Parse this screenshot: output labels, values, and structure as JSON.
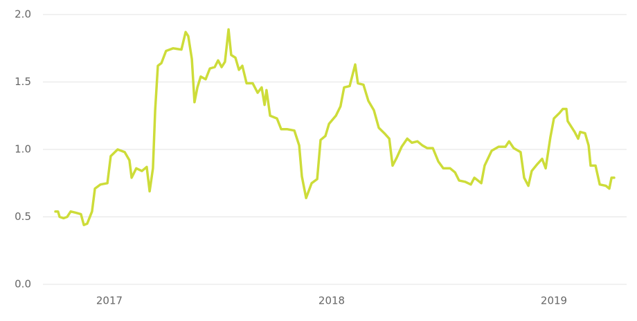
{
  "chart_data": {
    "type": "line",
    "color": "#cddc39",
    "grid": true,
    "xlim": [
      2016.701,
      2019.327
    ],
    "xticks": [
      2017,
      2018,
      2019
    ],
    "ylim": [
      0,
      2
    ],
    "yticks": [
      {
        "value": 0,
        "label": "0.0"
      },
      0.5,
      {
        "value": 1,
        "label": "1.0"
      },
      1.5,
      {
        "value": 2,
        "label": "2.0"
      }
    ],
    "x": [
      2016.757,
      2016.769,
      2016.776,
      2016.794,
      2016.81,
      2016.826,
      2016.85,
      2016.872,
      2016.885,
      2016.9,
      2016.922,
      2016.935,
      2016.96,
      2016.991,
      2017.006,
      2017.037,
      2017.069,
      2017.09,
      2017.1,
      2017.121,
      2017.146,
      2017.168,
      2017.181,
      2017.196,
      2017.206,
      2017.218,
      2017.234,
      2017.255,
      2017.287,
      2017.324,
      2017.343,
      2017.355,
      2017.371,
      2017.383,
      2017.396,
      2017.411,
      2017.433,
      2017.452,
      2017.474,
      2017.489,
      2017.505,
      2017.52,
      2017.536,
      2017.548,
      2017.567,
      2017.583,
      2017.598,
      2017.617,
      2017.645,
      2017.667,
      2017.685,
      2017.698,
      2017.707,
      2017.723,
      2017.754,
      2017.773,
      2017.801,
      2017.832,
      2017.854,
      2017.866,
      2017.885,
      2017.91,
      2017.935,
      2017.95,
      2017.972,
      2017.988,
      2018.019,
      2018.04,
      2018.056,
      2018.081,
      2018.106,
      2018.118,
      2018.143,
      2018.165,
      2018.19,
      2018.212,
      2018.237,
      2018.259,
      2018.274,
      2018.293,
      2018.315,
      2018.34,
      2018.361,
      2018.386,
      2018.408,
      2018.43,
      2018.455,
      2018.48,
      2018.502,
      2018.533,
      2018.555,
      2018.573,
      2018.601,
      2018.626,
      2018.642,
      2018.673,
      2018.688,
      2018.72,
      2018.751,
      2018.782,
      2018.798,
      2018.819,
      2018.85,
      2018.866,
      2018.885,
      2018.9,
      2018.925,
      2018.947,
      2018.963,
      2018.984,
      2019.0,
      2019.025,
      2019.04,
      2019.056,
      2019.062,
      2019.093,
      2019.109,
      2019.118,
      2019.14,
      2019.156,
      2019.165,
      2019.187,
      2019.206,
      2019.234,
      2019.249,
      2019.259,
      2019.271
    ],
    "values": [
      0.54,
      0.54,
      0.5,
      0.49,
      0.5,
      0.54,
      0.53,
      0.52,
      0.44,
      0.45,
      0.54,
      0.71,
      0.74,
      0.75,
      0.95,
      1.0,
      0.98,
      0.92,
      0.79,
      0.86,
      0.84,
      0.87,
      0.69,
      0.86,
      1.29,
      1.62,
      1.64,
      1.73,
      1.75,
      1.74,
      1.87,
      1.84,
      1.67,
      1.35,
      1.46,
      1.54,
      1.52,
      1.6,
      1.61,
      1.66,
      1.61,
      1.65,
      1.89,
      1.7,
      1.68,
      1.59,
      1.62,
      1.49,
      1.49,
      1.42,
      1.46,
      1.33,
      1.44,
      1.25,
      1.23,
      1.15,
      1.15,
      1.14,
      1.03,
      0.8,
      0.64,
      0.75,
      0.78,
      1.07,
      1.1,
      1.19,
      1.25,
      1.32,
      1.46,
      1.47,
      1.63,
      1.49,
      1.48,
      1.36,
      1.29,
      1.16,
      1.12,
      1.08,
      0.88,
      0.94,
      1.02,
      1.08,
      1.05,
      1.06,
      1.03,
      1.01,
      1.01,
      0.91,
      0.86,
      0.86,
      0.83,
      0.77,
      0.76,
      0.74,
      0.79,
      0.75,
      0.88,
      0.99,
      1.02,
      1.02,
      1.06,
      1.01,
      0.98,
      0.79,
      0.73,
      0.84,
      0.89,
      0.93,
      0.86,
      1.09,
      1.23,
      1.27,
      1.3,
      1.3,
      1.21,
      1.13,
      1.08,
      1.13,
      1.12,
      1.03,
      0.88,
      0.88,
      0.74,
      0.73,
      0.71,
      0.79,
      0.79
    ]
  }
}
